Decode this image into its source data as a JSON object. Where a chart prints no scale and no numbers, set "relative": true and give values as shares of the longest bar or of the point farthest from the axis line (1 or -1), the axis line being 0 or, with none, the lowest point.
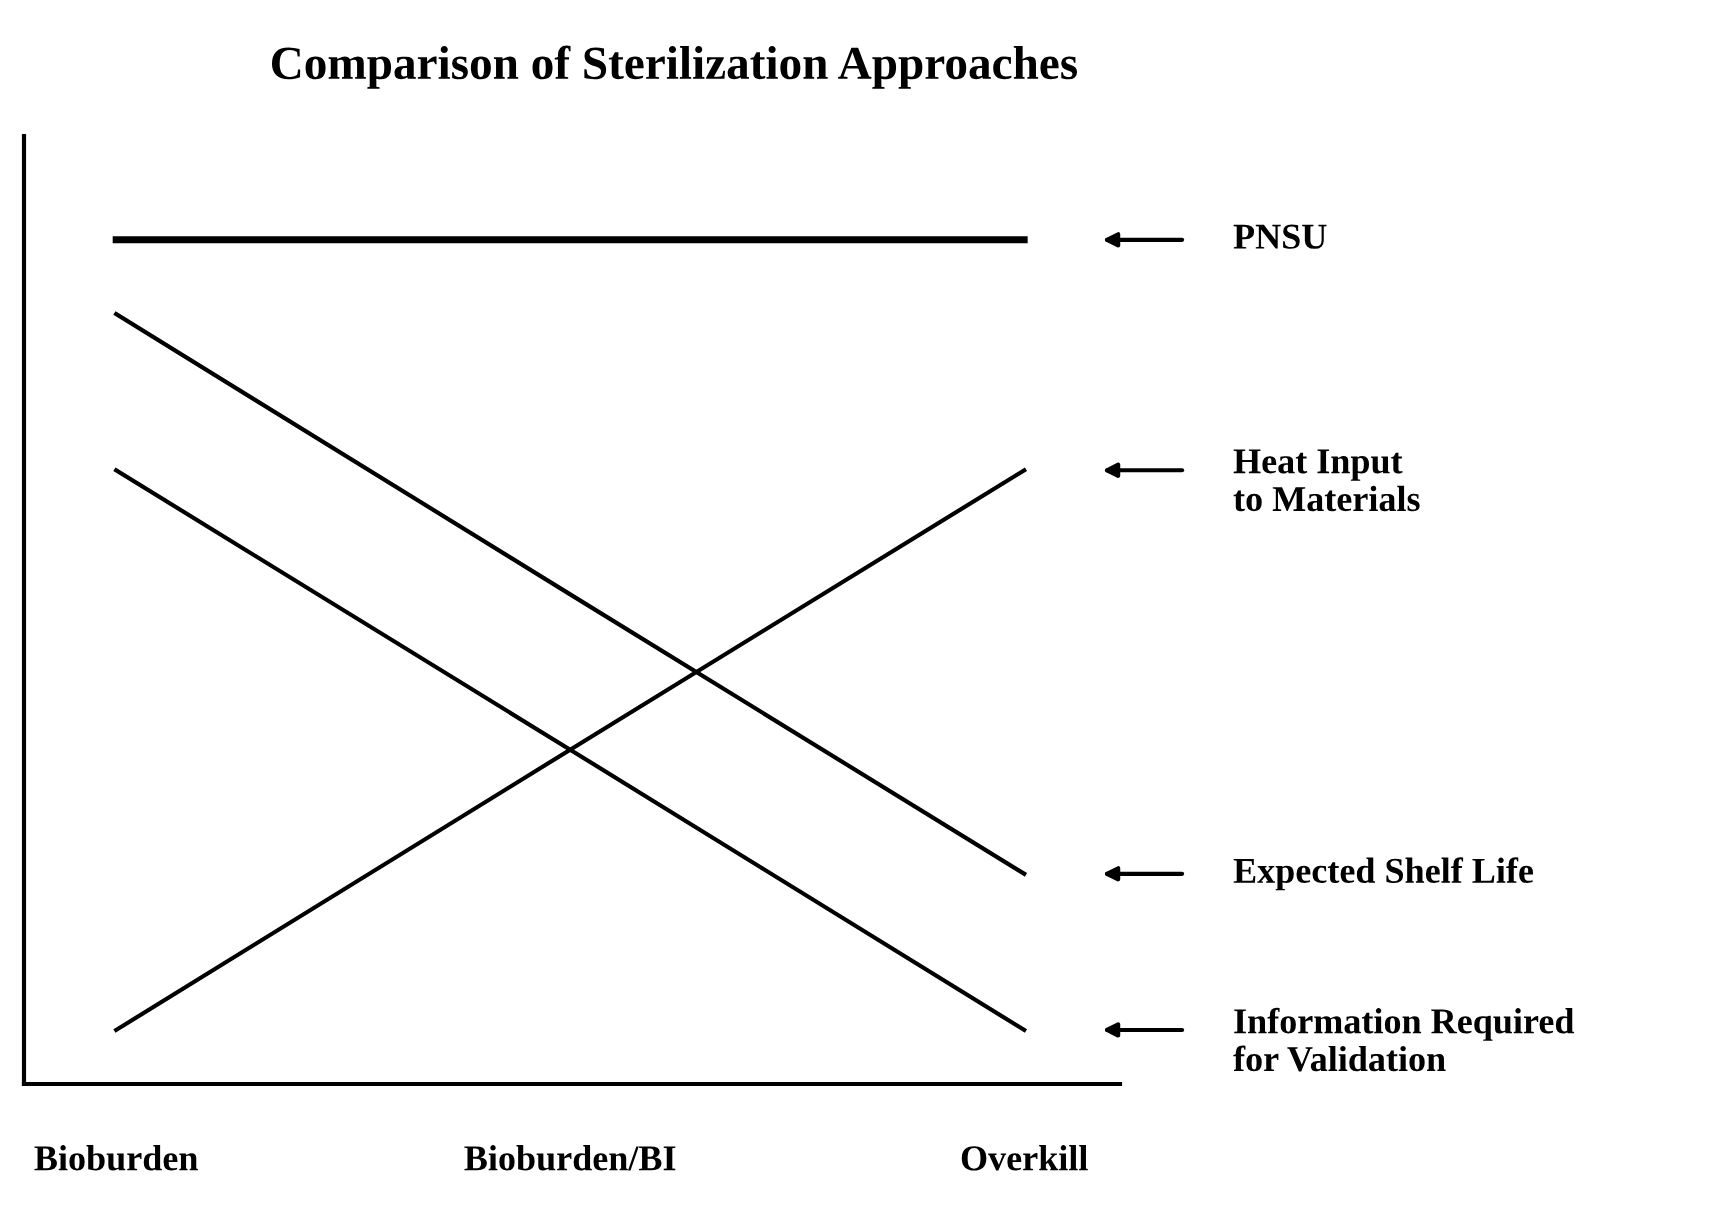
{
  "chart_data": {
    "type": "line",
    "title": "Comparison of Sterilization Approaches",
    "relative": true,
    "categories": [
      "Bioburden",
      "Bioburden/BI",
      "Overkill"
    ],
    "grid": false,
    "legend": "right",
    "marker": "none",
    "line_style": "solid",
    "series": [
      {
        "name": "PNSU",
        "color": "#000000",
        "values": [
          1,
          1,
          1
        ]
      },
      {
        "name": "Heat Input\nto Materials",
        "color": "#000000",
        "values": [
          0.064,
          0.396,
          0.727
        ]
      },
      {
        "name": "Expected Shelf Life",
        "color": "#000000",
        "values": [
          0.912,
          0.58,
          0.249
        ]
      },
      {
        "name": "Information Required\nfor Validation",
        "color": "#000000",
        "values": [
          0.727,
          0.396,
          0.064
        ]
      }
    ]
  }
}
